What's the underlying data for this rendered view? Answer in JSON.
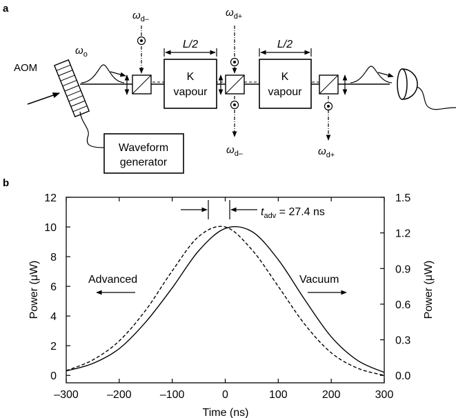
{
  "panel_a": {
    "label": "a",
    "aom": "AOM",
    "omega_o": "ω",
    "omega_o_sub": "o",
    "omega_dminus_top": "ω",
    "omega_dminus_top_sub": "d–",
    "omega_dplus_top": "ω",
    "omega_dplus_top_sub": "d+",
    "omega_dminus_bottom": "ω",
    "omega_dminus_bottom_sub": "d–",
    "omega_dplus_bottom": "ω",
    "omega_dplus_bottom_sub": "d+",
    "length1": "L/2",
    "length2": "L/2",
    "cell1_line1": "K",
    "cell1_line2": "vapour",
    "cell2_line1": "K",
    "cell2_line2": "vapour",
    "waveform_line1": "Waveform",
    "waveform_line2": "generator"
  },
  "panel_b": {
    "label": "b",
    "ylabel_left": "Power (μW)",
    "ylabel_right": "Power (μW)",
    "xlabel": "Time (ns)",
    "annotation_t": "t",
    "annotation_sub": "adv",
    "annotation_rest": " = 27.4 ns",
    "advanced_label": "Advanced",
    "vacuum_label": "Vacuum"
  },
  "chart_data": {
    "type": "line",
    "xlabel": "Time (ns)",
    "ylabel": "Power (μW)",
    "y2label": "Power (μW)",
    "xlim": [
      -300,
      300
    ],
    "ylim": [
      -0.5,
      12
    ],
    "y2lim": [
      -0.0625,
      1.5
    ],
    "xticks": [
      -300,
      -200,
      -100,
      0,
      100,
      200,
      300
    ],
    "xtick_labels": [
      "–300",
      "–200",
      "–100",
      "0",
      "100",
      "200",
      "300"
    ],
    "yticks": [
      0,
      2,
      4,
      6,
      8,
      10,
      12
    ],
    "y2ticks": [
      0.0,
      0.3,
      0.6,
      0.9,
      1.2,
      1.5
    ],
    "y2tick_labels": [
      "0.0",
      "0.3",
      "0.6",
      "0.9",
      "1.2",
      "1.5"
    ],
    "series": [
      {
        "axis": "left",
        "style": "solid",
        "x": [
          -300,
          -250,
          -200,
          -150,
          -100,
          -50,
          0,
          50,
          100,
          150,
          200,
          250,
          300
        ],
        "y": [
          0.3,
          0.8,
          1.8,
          3.6,
          5.9,
          8.4,
          9.9,
          9.7,
          7.8,
          5.1,
          2.6,
          1.0,
          0.2
        ]
      },
      {
        "axis": "right",
        "style": "dashed",
        "x": [
          -300,
          -250,
          -200,
          -150,
          -100,
          -50,
          0,
          50,
          100,
          150,
          200,
          250,
          300
        ],
        "y": [
          0.04,
          0.13,
          0.29,
          0.55,
          0.88,
          1.17,
          1.25,
          1.06,
          0.75,
          0.43,
          0.19,
          0.06,
          0.0
        ]
      }
    ],
    "annotations": [
      "t_adv = 27.4 ns",
      "Advanced",
      "Vacuum"
    ]
  }
}
